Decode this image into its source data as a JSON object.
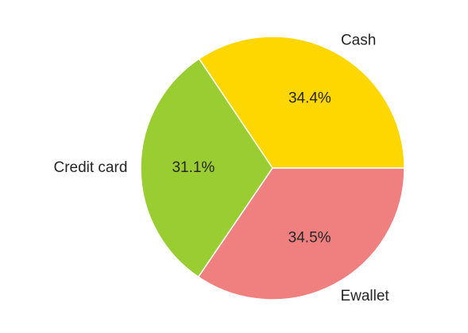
{
  "chart_data": {
    "type": "pie",
    "title": "",
    "slices": [
      {
        "label": "Cash",
        "value": 34.4,
        "pct_label": "34.4%",
        "color": "#FFD700"
      },
      {
        "label": "Credit card",
        "value": 31.1,
        "pct_label": "31.1%",
        "color": "#9ACD32"
      },
      {
        "label": "Ewallet",
        "value": 34.5,
        "pct_label": "34.5%",
        "color": "#F08080"
      }
    ],
    "start_angle_deg": 0,
    "direction": "counterclockwise",
    "legend": "none"
  }
}
